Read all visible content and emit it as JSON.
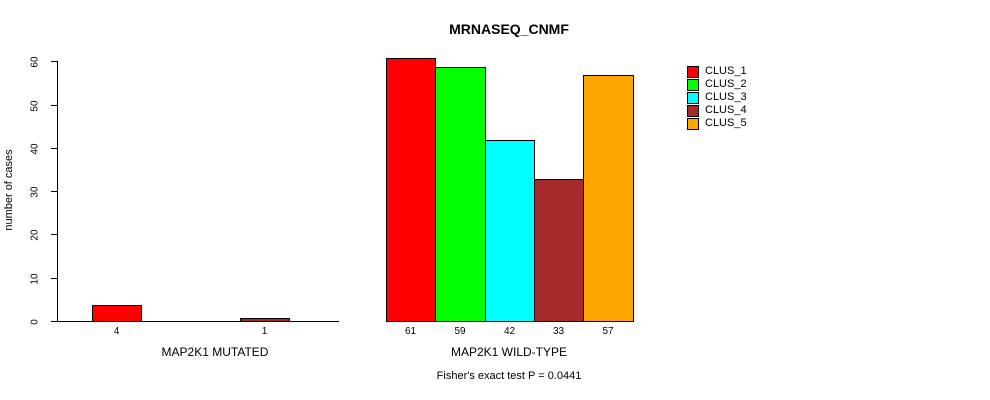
{
  "chart_data": {
    "type": "bar",
    "title": "MRNASEQ_CNMF",
    "ylabel": "number of cases",
    "xlabel": "",
    "categories": [
      "MAP2K1 MUTATED",
      "MAP2K1 WILD-TYPE"
    ],
    "series": [
      {
        "name": "CLUS_1",
        "color": "#ff0000",
        "values": [
          4,
          61
        ]
      },
      {
        "name": "CLUS_2",
        "color": "#00ff00",
        "values": [
          0,
          59
        ]
      },
      {
        "name": "CLUS_3",
        "color": "#00ffff",
        "values": [
          0,
          42
        ]
      },
      {
        "name": "CLUS_4",
        "color": "#a52a2a",
        "values": [
          1,
          33
        ]
      },
      {
        "name": "CLUS_5",
        "color": "#ffa500",
        "values": [
          0,
          57
        ]
      }
    ],
    "ylim": [
      0,
      60
    ],
    "yticks": [
      0,
      10,
      20,
      30,
      40,
      50,
      60
    ],
    "grid": false,
    "legend_position": "right",
    "bar_value_labels": "shown below each nonzero bar",
    "annotation": "Fisher's exact test P = 0.0441"
  },
  "colors": {
    "background": "#ffffff",
    "axis": "#000000",
    "text": "#000000",
    "bar_border": "#000000"
  }
}
